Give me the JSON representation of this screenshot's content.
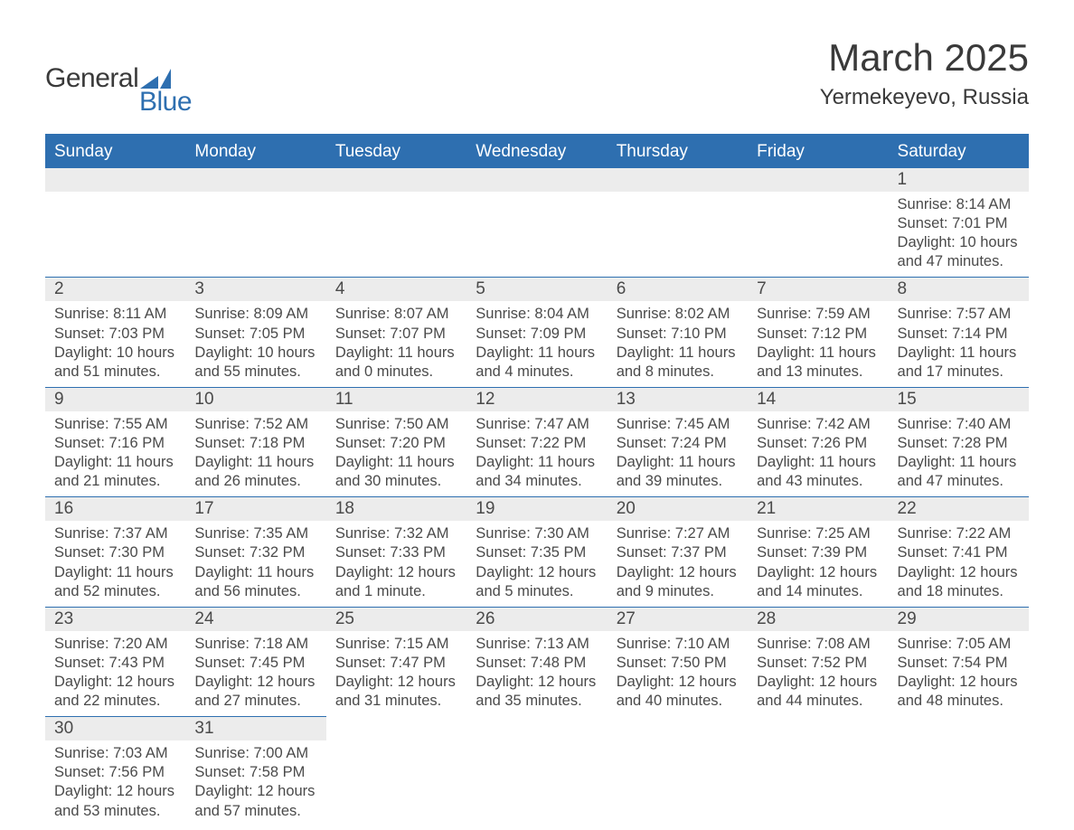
{
  "logo": {
    "text1": "General",
    "text2": "Blue",
    "shape_color": "#2e6fb0"
  },
  "title": "March 2025",
  "location": "Yermekeyevo, Russia",
  "colors": {
    "header_bg": "#2e6fb0",
    "header_text": "#ffffff",
    "daynum_bg": "#ececec",
    "body_text": "#4a4a4a",
    "border": "#2e6fb0",
    "page_bg": "#ffffff"
  },
  "typography": {
    "title_fontsize": 42,
    "location_fontsize": 24,
    "weekday_fontsize": 19,
    "daynum_fontsize": 19,
    "body_fontsize": 16.5
  },
  "weekdays": [
    "Sunday",
    "Monday",
    "Tuesday",
    "Wednesday",
    "Thursday",
    "Friday",
    "Saturday"
  ],
  "structure": {
    "type": "calendar",
    "columns": 7,
    "rows": 6,
    "first_day_col": 6
  },
  "days": [
    {
      "n": 1,
      "sunrise": "8:14 AM",
      "sunset": "7:01 PM",
      "daylight": "10 hours and 47 minutes."
    },
    {
      "n": 2,
      "sunrise": "8:11 AM",
      "sunset": "7:03 PM",
      "daylight": "10 hours and 51 minutes."
    },
    {
      "n": 3,
      "sunrise": "8:09 AM",
      "sunset": "7:05 PM",
      "daylight": "10 hours and 55 minutes."
    },
    {
      "n": 4,
      "sunrise": "8:07 AM",
      "sunset": "7:07 PM",
      "daylight": "11 hours and 0 minutes."
    },
    {
      "n": 5,
      "sunrise": "8:04 AM",
      "sunset": "7:09 PM",
      "daylight": "11 hours and 4 minutes."
    },
    {
      "n": 6,
      "sunrise": "8:02 AM",
      "sunset": "7:10 PM",
      "daylight": "11 hours and 8 minutes."
    },
    {
      "n": 7,
      "sunrise": "7:59 AM",
      "sunset": "7:12 PM",
      "daylight": "11 hours and 13 minutes."
    },
    {
      "n": 8,
      "sunrise": "7:57 AM",
      "sunset": "7:14 PM",
      "daylight": "11 hours and 17 minutes."
    },
    {
      "n": 9,
      "sunrise": "7:55 AM",
      "sunset": "7:16 PM",
      "daylight": "11 hours and 21 minutes."
    },
    {
      "n": 10,
      "sunrise": "7:52 AM",
      "sunset": "7:18 PM",
      "daylight": "11 hours and 26 minutes."
    },
    {
      "n": 11,
      "sunrise": "7:50 AM",
      "sunset": "7:20 PM",
      "daylight": "11 hours and 30 minutes."
    },
    {
      "n": 12,
      "sunrise": "7:47 AM",
      "sunset": "7:22 PM",
      "daylight": "11 hours and 34 minutes."
    },
    {
      "n": 13,
      "sunrise": "7:45 AM",
      "sunset": "7:24 PM",
      "daylight": "11 hours and 39 minutes."
    },
    {
      "n": 14,
      "sunrise": "7:42 AM",
      "sunset": "7:26 PM",
      "daylight": "11 hours and 43 minutes."
    },
    {
      "n": 15,
      "sunrise": "7:40 AM",
      "sunset": "7:28 PM",
      "daylight": "11 hours and 47 minutes."
    },
    {
      "n": 16,
      "sunrise": "7:37 AM",
      "sunset": "7:30 PM",
      "daylight": "11 hours and 52 minutes."
    },
    {
      "n": 17,
      "sunrise": "7:35 AM",
      "sunset": "7:32 PM",
      "daylight": "11 hours and 56 minutes."
    },
    {
      "n": 18,
      "sunrise": "7:32 AM",
      "sunset": "7:33 PM",
      "daylight": "12 hours and 1 minute."
    },
    {
      "n": 19,
      "sunrise": "7:30 AM",
      "sunset": "7:35 PM",
      "daylight": "12 hours and 5 minutes."
    },
    {
      "n": 20,
      "sunrise": "7:27 AM",
      "sunset": "7:37 PM",
      "daylight": "12 hours and 9 minutes."
    },
    {
      "n": 21,
      "sunrise": "7:25 AM",
      "sunset": "7:39 PM",
      "daylight": "12 hours and 14 minutes."
    },
    {
      "n": 22,
      "sunrise": "7:22 AM",
      "sunset": "7:41 PM",
      "daylight": "12 hours and 18 minutes."
    },
    {
      "n": 23,
      "sunrise": "7:20 AM",
      "sunset": "7:43 PM",
      "daylight": "12 hours and 22 minutes."
    },
    {
      "n": 24,
      "sunrise": "7:18 AM",
      "sunset": "7:45 PM",
      "daylight": "12 hours and 27 minutes."
    },
    {
      "n": 25,
      "sunrise": "7:15 AM",
      "sunset": "7:47 PM",
      "daylight": "12 hours and 31 minutes."
    },
    {
      "n": 26,
      "sunrise": "7:13 AM",
      "sunset": "7:48 PM",
      "daylight": "12 hours and 35 minutes."
    },
    {
      "n": 27,
      "sunrise": "7:10 AM",
      "sunset": "7:50 PM",
      "daylight": "12 hours and 40 minutes."
    },
    {
      "n": 28,
      "sunrise": "7:08 AM",
      "sunset": "7:52 PM",
      "daylight": "12 hours and 44 minutes."
    },
    {
      "n": 29,
      "sunrise": "7:05 AM",
      "sunset": "7:54 PM",
      "daylight": "12 hours and 48 minutes."
    },
    {
      "n": 30,
      "sunrise": "7:03 AM",
      "sunset": "7:56 PM",
      "daylight": "12 hours and 53 minutes."
    },
    {
      "n": 31,
      "sunrise": "7:00 AM",
      "sunset": "7:58 PM",
      "daylight": "12 hours and 57 minutes."
    }
  ],
  "labels": {
    "sunrise": "Sunrise:",
    "sunset": "Sunset:",
    "daylight": "Daylight:"
  }
}
